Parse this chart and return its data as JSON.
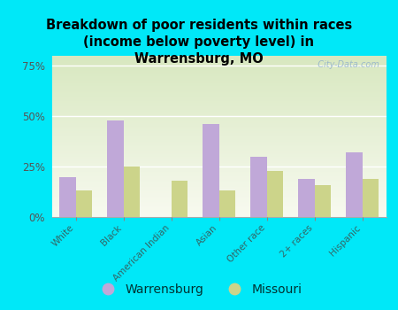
{
  "title": "Breakdown of poor residents within races\n(income below poverty level) in\nWarrensburg, MO",
  "categories": [
    "White",
    "Black",
    "American Indian",
    "Asian",
    "Other race",
    "2+ races",
    "Hispanic"
  ],
  "warrensburg": [
    20,
    48,
    0,
    46,
    30,
    19,
    32
  ],
  "missouri": [
    13,
    25,
    18,
    13,
    23,
    16,
    19
  ],
  "warrensburg_color": "#c0a8d8",
  "missouri_color": "#ccd48a",
  "background_outer": "#00e8f8",
  "background_plot_top": "#d8e8c0",
  "background_plot_bottom": "#f0f4e0",
  "yticks": [
    0,
    25,
    50,
    75
  ],
  "ylim": [
    0,
    80
  ],
  "bar_width": 0.35,
  "watermark": "  City-Data.com",
  "legend_warrensburg": "Warrensburg",
  "legend_missouri": "Missouri"
}
